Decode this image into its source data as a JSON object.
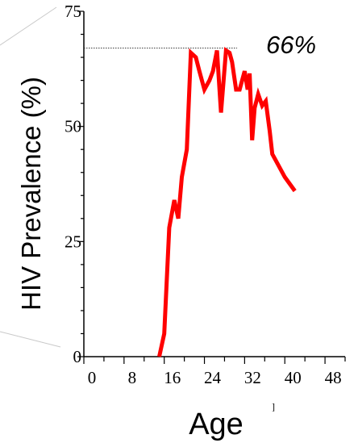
{
  "chart_data": {
    "type": "line",
    "title": "",
    "xlabel": "Age",
    "ylabel": "HIV Prevalence (%)",
    "xlim": [
      0,
      52
    ],
    "ylim": [
      0,
      75
    ],
    "x_ticks": [
      0,
      8,
      16,
      24,
      32,
      40,
      48
    ],
    "y_ticks": [
      0,
      25,
      50,
      75
    ],
    "grid": false,
    "series": [
      {
        "color": "#ff0000",
        "x": [
          15,
          16,
          17,
          18,
          18.8,
          19.5,
          20.5,
          21.3,
          22.3,
          23,
          24,
          25,
          25.7,
          26.5,
          27.3,
          28.3,
          29,
          29.5,
          30.3,
          31,
          32,
          32.6,
          33,
          33.5,
          34,
          34.7,
          35.5,
          36.2,
          37,
          37.5,
          38,
          40,
          42
        ],
        "y": [
          0,
          5,
          28,
          34,
          30,
          39,
          45,
          66,
          65,
          62,
          58,
          60,
          62,
          66.5,
          53,
          66.5,
          66,
          64,
          58,
          58,
          62,
          58,
          61.5,
          47,
          54,
          57,
          54.5,
          55.5,
          49,
          44,
          43,
          39,
          36
        ]
      }
    ],
    "reference_line": {
      "y": 67,
      "x_start": 0,
      "x_end": 30.5,
      "style": "dotted"
    },
    "annotations": [
      {
        "text": "66%"
      }
    ],
    "stray_mark": "]"
  }
}
